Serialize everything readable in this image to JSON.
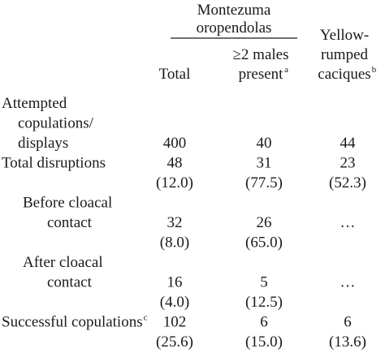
{
  "table": {
    "header": {
      "group": [
        "Montezuma",
        "oropendolas"
      ],
      "columns": [
        {
          "lines": [
            "Total"
          ]
        },
        {
          "lines": [
            "≥2 males",
            "present"
          ],
          "note": "a"
        },
        {
          "lines": [
            "Yellow-",
            "rumped",
            "caciques"
          ],
          "note": "b"
        }
      ]
    },
    "rows": [
      {
        "label": [
          "Attempted",
          "copulations/",
          "displays"
        ],
        "values": [
          "400",
          "40",
          "44"
        ]
      },
      {
        "label": [
          "Total disruptions"
        ],
        "values": [
          "48",
          "31",
          "23"
        ],
        "percents": [
          "(12.0)",
          "(77.5)",
          "(52.3)"
        ]
      },
      {
        "label": [
          "Before cloacal",
          "contact"
        ],
        "values": [
          "32",
          "26",
          "…"
        ],
        "percents": [
          "(8.0)",
          "(65.0)"
        ]
      },
      {
        "label": [
          "After cloacal",
          "contact"
        ],
        "values": [
          "16",
          "5",
          "…"
        ],
        "percents": [
          "(4.0)",
          "(12.5)"
        ]
      },
      {
        "label": [
          "Successful copulations"
        ],
        "note": "c",
        "values": [
          "102",
          "6",
          "6"
        ],
        "percents": [
          "(25.6)",
          "(15.0)",
          "(13.6)"
        ]
      }
    ]
  }
}
